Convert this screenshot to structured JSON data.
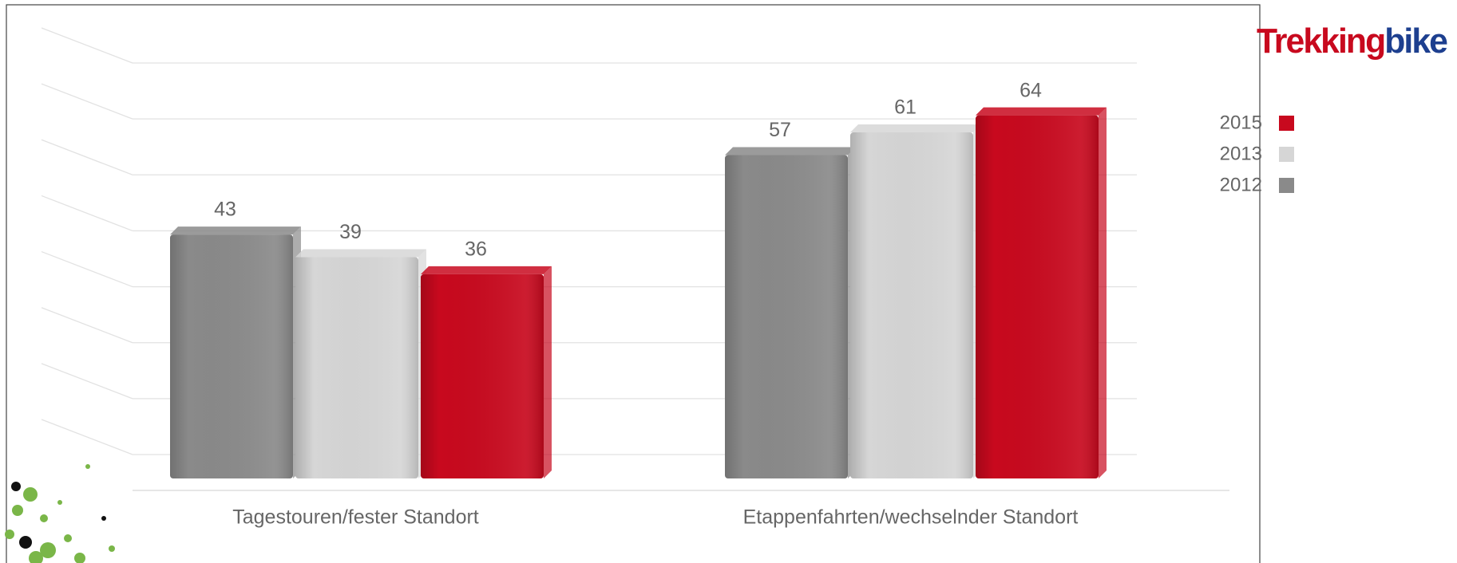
{
  "chart_data": {
    "type": "bar3d",
    "categories": [
      "Tagestouren/fester Standort",
      "Etappenfahrten/wechselnder Standort"
    ],
    "series": [
      {
        "name": "2012",
        "color": "#8a8a8a",
        "values": [
          43,
          57
        ]
      },
      {
        "name": "2013",
        "color": "#d6d6d6",
        "values": [
          39,
          61
        ]
      },
      {
        "name": "2015",
        "color": "#c8091e",
        "values": [
          36,
          64
        ]
      }
    ],
    "ylim": [
      0,
      70
    ],
    "yticks": [
      0,
      10,
      20,
      30,
      40,
      50,
      60,
      70
    ],
    "grid": true,
    "legend": "right"
  },
  "logo": {
    "parts": [
      {
        "text": "Trekking",
        "color": "#c8091e"
      },
      {
        "text": "bike",
        "color": "#1d3f8f"
      }
    ]
  }
}
